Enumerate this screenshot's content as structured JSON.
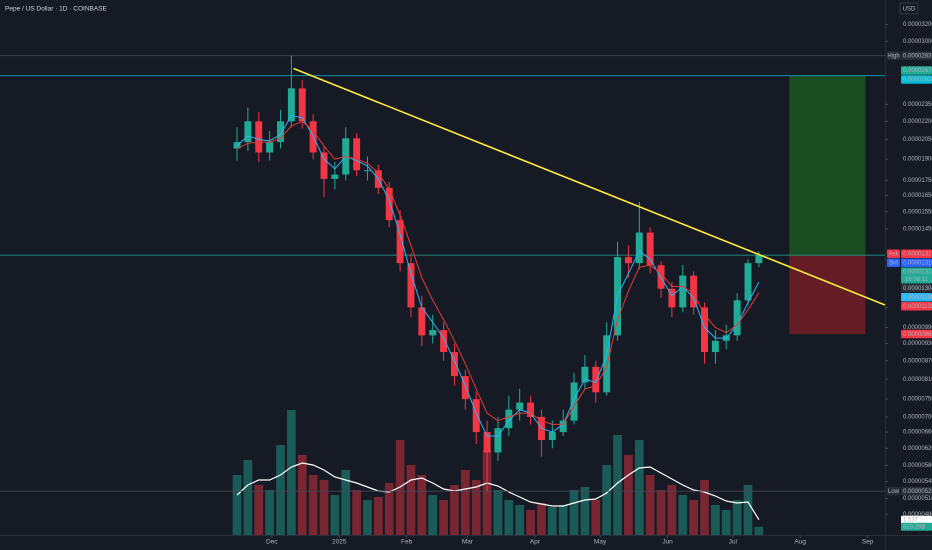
{
  "chart_data": {
    "type": "candlestick",
    "title": "Pepe / US Dollar · 1D · COINBASE",
    "currency": "USD",
    "log_scale": true,
    "grid": false,
    "up_color": "#22ab94",
    "down_color": "#f23645",
    "xlim": [
      -109,
      298
    ],
    "xticks": [
      {
        "value": 16,
        "label": "Dec"
      },
      {
        "value": 47,
        "label": "2025"
      },
      {
        "value": 78,
        "label": "Feb"
      },
      {
        "value": 106,
        "label": "Mar"
      },
      {
        "value": 137,
        "label": "Apr"
      },
      {
        "value": 167,
        "label": "May"
      },
      {
        "value": 198,
        "label": "Jun"
      },
      {
        "value": 228,
        "label": "Jul"
      },
      {
        "value": 259,
        "label": "Aug"
      },
      {
        "value": 290,
        "label": "Sep"
      }
    ],
    "ylim": [
      4.43e-06,
      3.52e-05
    ],
    "yticks": [
      {
        "value": 3.2e-05,
        "label": "0.00003200"
      },
      {
        "value": 3e-05,
        "label": "0.00003000"
      },
      {
        "value": 2.35e-05,
        "label": "0.00002350"
      },
      {
        "value": 2.2e-05,
        "label": "0.00002200"
      },
      {
        "value": 2.05e-05,
        "label": "0.00002050"
      },
      {
        "value": 1.9e-05,
        "label": "0.00001900"
      },
      {
        "value": 1.75e-05,
        "label": "0.00001750"
      },
      {
        "value": 1.65e-05,
        "label": "0.00001650"
      },
      {
        "value": 1.55e-05,
        "label": "0.00001550"
      },
      {
        "value": 1.45e-05,
        "label": "0.00001450"
      },
      {
        "value": 1.07e-05,
        "label": "0.00001070"
      },
      {
        "value": 9.9e-06,
        "label": "0.00000990"
      },
      {
        "value": 9.3e-06,
        "label": "0.00000930"
      },
      {
        "value": 8.7e-06,
        "label": "0.00000870"
      },
      {
        "value": 8.1e-06,
        "label": "0.00000810"
      },
      {
        "value": 7.5e-06,
        "label": "0.00000750"
      },
      {
        "value": 7e-06,
        "label": "0.00000700"
      },
      {
        "value": 6.6e-06,
        "label": "0.00000660"
      },
      {
        "value": 6.2e-06,
        "label": "0.00000620"
      },
      {
        "value": 5.8e-06,
        "label": "0.00000580"
      },
      {
        "value": 5.45e-06,
        "label": "0.00000545"
      },
      {
        "value": 5.1e-06,
        "label": "0.00000510"
      },
      {
        "value": 4.8e-06,
        "label": "0.00000480"
      }
    ],
    "x": [
      0,
      5,
      10,
      15,
      20,
      25,
      30,
      35,
      40,
      45,
      50,
      55,
      60,
      65,
      70,
      75,
      80,
      85,
      90,
      95,
      100,
      105,
      110,
      115,
      120,
      125,
      130,
      135,
      140,
      145,
      150,
      155,
      160,
      165,
      170,
      175,
      180,
      185,
      190,
      195,
      200,
      205,
      210,
      215,
      220,
      225,
      230,
      235,
      240
    ],
    "open": [
      1.98e-05,
      2.03e-05,
      2.2e-05,
      1.95e-05,
      2.03e-05,
      2.2e-05,
      2.5e-05,
      2.2e-05,
      1.95e-05,
      1.76e-05,
      1.79e-05,
      2.06e-05,
      1.82e-05,
      1.82e-05,
      1.7e-05,
      1.5e-05,
      1.27e-05,
      1.07e-05,
      9.6e-06,
      9.8e-06,
      9e-06,
      8.2e-06,
      7.5e-06,
      6.6e-06,
      6.1e-06,
      6.7e-06,
      7.2e-06,
      7.4e-06,
      7e-06,
      6.4e-06,
      6.6e-06,
      6.9e-06,
      8e-06,
      8.5e-06,
      7.7e-06,
      9.6e-06,
      1.3e-05,
      1.27e-05,
      1.43e-05,
      1.26e-05,
      1.15e-05,
      1.07e-05,
      1.21e-05,
      1.07e-05,
      9e-06,
      9.4e-06,
      9.6e-06,
      1.1e-05,
      1.27e-05
    ],
    "high": [
      2.15e-05,
      2.32e-05,
      2.28e-05,
      2.12e-05,
      2.3e-05,
      2.837e-05,
      2.58e-05,
      2.26e-05,
      2e-05,
      1.88e-05,
      2.15e-05,
      2.1e-05,
      1.92e-05,
      1.86e-05,
      1.74e-05,
      1.56e-05,
      1.32e-05,
      1.12e-05,
      1.04e-05,
      1.01e-05,
      9.3e-06,
      8.4e-06,
      7.7e-06,
      6.9e-06,
      7e-06,
      7.6e-06,
      7.8e-06,
      7.6e-06,
      7.2e-06,
      6.9e-06,
      7.2e-06,
      8.3e-06,
      8.9e-06,
      8.7e-06,
      1.01e-05,
      1.38e-05,
      1.36e-05,
      1.61e-05,
      1.46e-05,
      1.28e-05,
      1.18e-05,
      1.26e-05,
      1.23e-05,
      1.09e-05,
      9.8e-06,
      1e-05,
      1.13e-05,
      1.29e-05,
      1.33e-05
    ],
    "low": [
      1.89e-05,
      1.96e-05,
      1.88e-05,
      1.89e-05,
      1.98e-05,
      2.15e-05,
      2.14e-05,
      1.9e-05,
      1.64e-05,
      1.69e-05,
      1.75e-05,
      1.78e-05,
      1.75e-05,
      1.66e-05,
      1.46e-05,
      1.23e-05,
      1.03e-05,
      9.2e-06,
      9.3e-06,
      8.7e-06,
      7.9e-06,
      7.2e-06,
      6.3e-06,
      5.25e-06,
      5.9e-06,
      6.5e-06,
      6.9e-06,
      6.8e-06,
      6e-06,
      6.2e-06,
      6.5e-06,
      6.8e-06,
      7.8e-06,
      7.4e-06,
      7.6e-06,
      9.4e-06,
      1.2e-05,
      1.24e-05,
      1.22e-05,
      1.11e-05,
      1.03e-05,
      1.05e-05,
      1.04e-05,
      8.6e-06,
      8.6e-06,
      9.1e-06,
      9.4e-06,
      1.08e-05,
      1.25e-05
    ],
    "close": [
      2.03e-05,
      2.2e-05,
      1.95e-05,
      2.03e-05,
      2.2e-05,
      2.5e-05,
      2.2e-05,
      1.95e-05,
      1.76e-05,
      1.79e-05,
      2.06e-05,
      1.82e-05,
      1.82e-05,
      1.7e-05,
      1.5e-05,
      1.27e-05,
      1.07e-05,
      9.6e-06,
      9.8e-06,
      9e-06,
      8.2e-06,
      7.5e-06,
      6.6e-06,
      6.1e-06,
      6.7e-06,
      7.2e-06,
      7.4e-06,
      7e-06,
      6.4e-06,
      6.6e-06,
      6.9e-06,
      8e-06,
      8.5e-06,
      7.7e-06,
      9.6e-06,
      1.3e-05,
      1.27e-05,
      1.43e-05,
      1.26e-05,
      1.15e-05,
      1.07e-05,
      1.21e-05,
      1.07e-05,
      9e-06,
      9.4e-06,
      9.6e-06,
      1.1e-05,
      1.27e-05,
      1.31e-05
    ],
    "lines": [
      {
        "color": "#29b6f6",
        "values": [
          2e-05,
          2.08e-05,
          2.05e-05,
          2.04e-05,
          2.09e-05,
          2.25e-05,
          2.23e-05,
          2.08e-05,
          1.9e-05,
          1.83e-05,
          1.92e-05,
          1.89e-05,
          1.85e-05,
          1.76e-05,
          1.62e-05,
          1.42e-05,
          1.22e-05,
          1.07e-05,
          1.01e-05,
          9.5e-06,
          8.7e-06,
          7.9e-06,
          7.1e-06,
          6.5e-06,
          6.5e-06,
          6.9e-06,
          7.2e-06,
          7.1e-06,
          6.7e-06,
          6.6e-06,
          6.8e-06,
          7.5e-06,
          8.1e-06,
          8e-06,
          8.9e-06,
          1.12e-05,
          1.22e-05,
          1.33e-05,
          1.29e-05,
          1.2e-05,
          1.12e-05,
          1.16e-05,
          1.11e-05,
          9.9e-06,
          9.5e-06,
          9.5e-06,
          1e-05,
          1.09e-05,
          1.18e-05
        ]
      },
      {
        "color": "#e53935",
        "values": [
          1.98e-05,
          2.02e-05,
          2.03e-05,
          2.03e-05,
          2.06e-05,
          2.16e-05,
          2.2e-05,
          2.12e-05,
          2e-05,
          1.9e-05,
          1.92e-05,
          1.9e-05,
          1.87e-05,
          1.8e-05,
          1.69e-05,
          1.53e-05,
          1.36e-05,
          1.2e-05,
          1.1e-05,
          1.02e-05,
          9.4e-06,
          8.6e-06,
          7.8e-06,
          7.1e-06,
          6.9e-06,
          7e-06,
          7.1e-06,
          7.1e-06,
          6.9e-06,
          6.8e-06,
          6.8e-06,
          7.3e-06,
          7.8e-06,
          7.9e-06,
          8.5e-06,
          1.02e-05,
          1.14e-05,
          1.25e-05,
          1.26e-05,
          1.22e-05,
          1.16e-05,
          1.16e-05,
          1.13e-05,
          1.04e-05,
          9.9e-06,
          9.7e-06,
          1e-05,
          1.06e-05,
          1.132e-05
        ]
      }
    ],
    "trendline": {
      "x": [
        26,
        298
      ],
      "values": [
        2.7e-05,
        1.08e-05
      ],
      "color": "#ffeb3b"
    },
    "position": {
      "x": [
        254,
        289
      ],
      "entry": 1.31e-05,
      "target": 2.625e-05,
      "stop": 9.65e-06
    },
    "volume_ylim": [
      0,
      14000
    ],
    "volume": [
      6000,
      7500,
      5000,
      4500,
      9000,
      12500,
      8000,
      6000,
      5500,
      4000,
      6500,
      4500,
      3500,
      3800,
      5200,
      9500,
      7000,
      6000,
      4000,
      3500,
      5000,
      6500,
      5500,
      8500,
      4500,
      3500,
      3000,
      2500,
      3200,
      2800,
      3000,
      4500,
      4800,
      3500,
      7000,
      10000,
      8000,
      9500,
      6000,
      4500,
      5000,
      4000,
      3500,
      5500,
      3000,
      2500,
      3500,
      5000,
      823.29
    ],
    "volume_labels": [
      null,
      null,
      null,
      null,
      null,
      null,
      null,
      null,
      null,
      null,
      null,
      null,
      null,
      null,
      null,
      null,
      null,
      null,
      null,
      null,
      null,
      null,
      null,
      null,
      null,
      null,
      null,
      null,
      null,
      null,
      null,
      null,
      null,
      null,
      null,
      null,
      null,
      null,
      null,
      null,
      null,
      null,
      null,
      null,
      null,
      null,
      null,
      null,
      "823.29B"
    ],
    "volume_ma": [
      4000,
      5000,
      5500,
      5500,
      6000,
      6800,
      7200,
      7000,
      6500,
      5800,
      5500,
      5200,
      4800,
      4400,
      4300,
      4800,
      5500,
      5700,
      5200,
      4600,
      4400,
      4600,
      4800,
      5200,
      4900,
      4300,
      3800,
      3300,
      3100,
      2900,
      2900,
      3200,
      3500,
      3600,
      4200,
      5200,
      6000,
      6700,
      6800,
      6200,
      5600,
      5000,
      4500,
      4300,
      3900,
      3400,
      3200,
      3300,
      1530
    ],
    "volume_ma_labels": [
      null,
      null,
      null,
      null,
      null,
      null,
      null,
      null,
      null,
      null,
      null,
      null,
      null,
      null,
      null,
      null,
      null,
      null,
      null,
      null,
      null,
      null,
      null,
      null,
      null,
      null,
      null,
      null,
      null,
      null,
      null,
      null,
      null,
      null,
      null,
      null,
      null,
      null,
      null,
      null,
      null,
      null,
      null,
      null,
      null,
      null,
      null,
      null,
      "1.53T"
    ],
    "price_tags": [
      {
        "name": "High",
        "value": 2.837e-05,
        "label": "0.00002837",
        "color": "#2a2e39",
        "line": true
      },
      {
        "value": 2.679e-05,
        "label": "0.00002679",
        "color": "#22ab94"
      },
      {
        "value": 2.625e-05,
        "label": "0.00002625",
        "color": "#00bcd4",
        "line": true
      },
      {
        "name": "Ask",
        "value": 1.317e-05,
        "label": "0.00001317",
        "color": "#f23645"
      },
      {
        "name": "Bid",
        "value": 1.31e-05,
        "label": "0.00001310",
        "color": "#2962ff"
      },
      {
        "value": 1.31e-05,
        "label": "0.00001310",
        "sublabel": "16:08:11",
        "color": "#22ab94",
        "line": true
      },
      {
        "value": 1.304e-05,
        "label": "0.00001304",
        "color": "#2a2e39"
      },
      {
        "value": 1.18e-05,
        "label": "0.00001180",
        "color": "#29b6f6"
      },
      {
        "value": 1.132e-05,
        "label": "0.00001132",
        "color": "#f23645"
      },
      {
        "value": 9.65e-06,
        "label": "0.00000965",
        "color": "#f23645"
      },
      {
        "name": "Low",
        "value": 5.25e-06,
        "label": "0.00000525",
        "color": "#2a2e39",
        "line": true
      }
    ]
  }
}
